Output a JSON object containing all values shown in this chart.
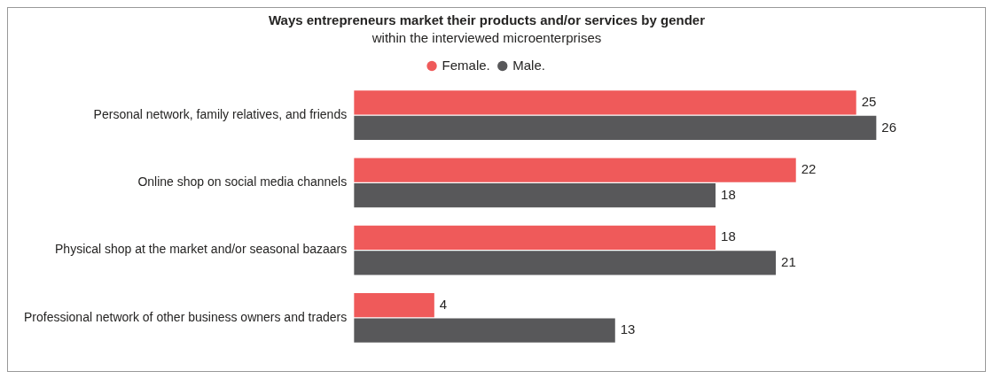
{
  "chart_data": {
    "type": "bar",
    "orientation": "horizontal",
    "title": "Ways entrepreneurs market their products and/or services by gender",
    "subtitle": "within the interviewed microenterprises",
    "categories": [
      "Personal network, family relatives, and friends",
      "Online shop on social media channels",
      "Physical shop at the market and/or seasonal bazaars",
      "Professional network of other business owners and traders"
    ],
    "series": [
      {
        "name": "Female.",
        "color": "#ef5a5a",
        "values": [
          25,
          22,
          18,
          4
        ]
      },
      {
        "name": "Male.",
        "color": "#58585a",
        "values": [
          26,
          18,
          21,
          13
        ]
      }
    ],
    "data_labels": true,
    "legend": "top",
    "grid": false,
    "tick_labels": "y"
  }
}
